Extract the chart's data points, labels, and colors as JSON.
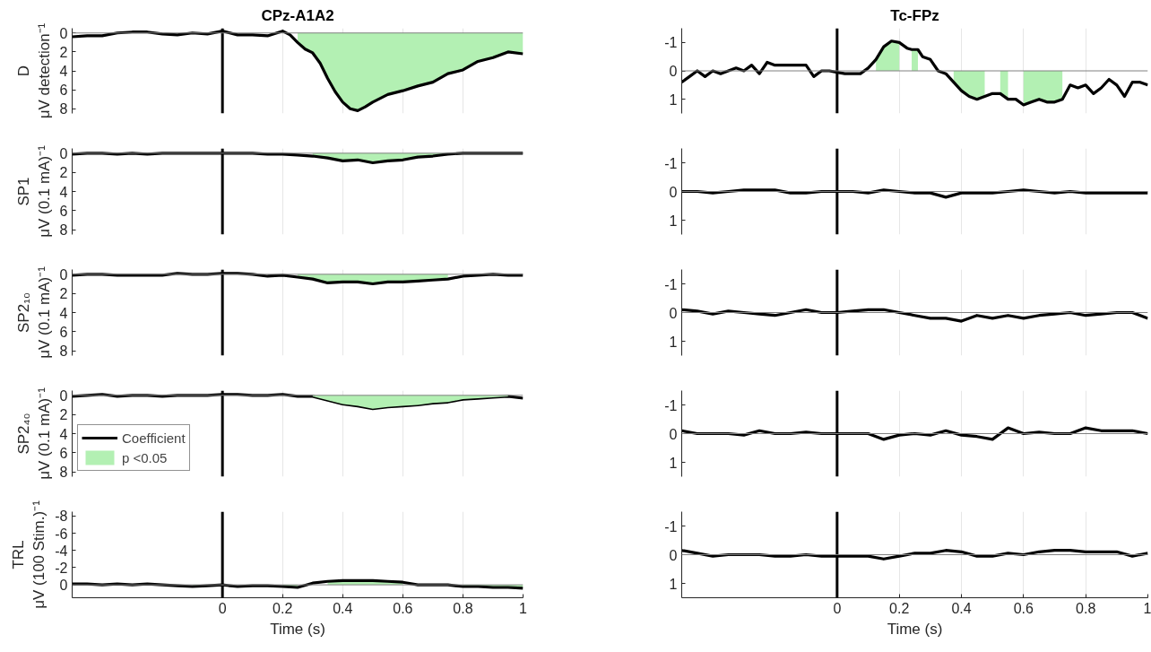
{
  "chart_data": [
    {
      "type": "line",
      "title": "CPz-A1A2",
      "ylabel": "D\nμV detection⁻¹",
      "tick_labels": "y",
      "grid": "x",
      "x": [
        -0.5,
        -0.45,
        -0.4,
        -0.35,
        -0.3,
        -0.25,
        -0.2,
        -0.15,
        -0.1,
        -0.05,
        0,
        0.05,
        0.1,
        0.15,
        0.2,
        0.225,
        0.25,
        0.275,
        0.3,
        0.325,
        0.35,
        0.375,
        0.4,
        0.425,
        0.45,
        0.475,
        0.5,
        0.525,
        0.55,
        0.6,
        0.65,
        0.7,
        0.75,
        0.8,
        0.85,
        0.9,
        0.95,
        1
      ],
      "xlim": [
        -0.5,
        1
      ],
      "xticks": [
        0,
        0.2,
        0.4,
        0.6,
        0.8,
        1
      ],
      "ylim": [
        8.5,
        -0.5
      ],
      "yticks": [
        0,
        2,
        4,
        6,
        8
      ],
      "ref_lines": [
        {
          "axis": "x",
          "value": 0,
          "color": "#000000"
        },
        {
          "axis": "y",
          "value": 0,
          "color": "#808080"
        }
      ],
      "series": [
        {
          "type": "area",
          "color": "#b3f0b3",
          "values": [
            null,
            null,
            null,
            null,
            null,
            null,
            null,
            null,
            null,
            null,
            null,
            null,
            null,
            null,
            null,
            null,
            1.0,
            1.7,
            2.1,
            3.2,
            4.8,
            6.2,
            7.3,
            8.0,
            8.2,
            7.8,
            7.3,
            6.9,
            6.5,
            6.1,
            5.6,
            5.2,
            4.3,
            3.9,
            3.0,
            2.6,
            2.0,
            2.2
          ]
        },
        {
          "type": "line",
          "color": "#000000",
          "values": [
            0.4,
            0.3,
            0.3,
            0,
            -0.1,
            -0.1,
            0.1,
            0.2,
            0,
            0.1,
            -0.2,
            0.2,
            0.2,
            0.3,
            -0.2,
            0.2,
            1.0,
            1.7,
            2.1,
            3.2,
            4.8,
            6.2,
            7.3,
            8.0,
            8.2,
            7.8,
            7.3,
            6.9,
            6.5,
            6.1,
            5.6,
            5.2,
            4.3,
            3.9,
            3.0,
            2.6,
            2.0,
            2.2
          ]
        }
      ]
    },
    {
      "type": "line",
      "title": "Tc-FPz",
      "tick_labels": "y",
      "grid": "x",
      "x": [
        -0.5,
        -0.475,
        -0.45,
        -0.425,
        -0.4,
        -0.375,
        -0.35,
        -0.325,
        -0.3,
        -0.275,
        -0.25,
        -0.225,
        -0.2,
        -0.175,
        -0.15,
        -0.125,
        -0.1,
        -0.075,
        -0.05,
        -0.025,
        0,
        0.025,
        0.05,
        0.075,
        0.1,
        0.125,
        0.15,
        0.175,
        0.2,
        0.225,
        0.24,
        0.26,
        0.275,
        0.3,
        0.325,
        0.35,
        0.375,
        0.4,
        0.425,
        0.45,
        0.475,
        0.5,
        0.525,
        0.55,
        0.575,
        0.6,
        0.625,
        0.65,
        0.675,
        0.7,
        0.725,
        0.75,
        0.775,
        0.8,
        0.825,
        0.85,
        0.875,
        0.9,
        0.925,
        0.95,
        0.975,
        1
      ],
      "xlim": [
        -0.5,
        1
      ],
      "xticks": [
        0,
        0.2,
        0.4,
        0.6,
        0.8,
        1
      ],
      "ylim": [
        1.5,
        -1.5
      ],
      "yticks": [
        -1,
        0,
        1
      ],
      "ref_lines": [
        {
          "axis": "x",
          "value": 0,
          "color": "#000000"
        },
        {
          "axis": "y",
          "value": 0,
          "color": "#808080"
        }
      ],
      "series": [
        {
          "type": "area",
          "color": "#b3f0b3",
          "values": [
            null,
            null,
            null,
            null,
            null,
            null,
            null,
            null,
            null,
            null,
            null,
            null,
            null,
            null,
            null,
            null,
            null,
            null,
            null,
            null,
            null,
            null,
            null,
            null,
            null,
            -0.4,
            -0.85,
            -1.05,
            -1.0,
            null,
            -0.75,
            -0.75,
            null,
            null,
            null,
            null,
            0.4,
            0.7,
            0.9,
            1.0,
            0.9,
            null,
            0.8,
            1.0,
            null,
            1.2,
            1.1,
            1.0,
            1.1,
            1.1,
            1.0,
            null,
            null,
            null,
            null,
            null,
            null,
            null,
            null,
            null,
            null,
            null
          ]
        },
        {
          "type": "line",
          "color": "#000000",
          "values": [
            0.4,
            0.2,
            0,
            0.2,
            0,
            0.1,
            0,
            -0.1,
            0,
            -0.2,
            0.1,
            -0.3,
            -0.2,
            -0.2,
            -0.2,
            -0.2,
            -0.2,
            0.2,
            0,
            0,
            0.05,
            0.1,
            0.1,
            0.1,
            -0.1,
            -0.4,
            -0.85,
            -1.05,
            -1.0,
            -0.8,
            -0.75,
            -0.75,
            -0.5,
            -0.4,
            0,
            0.1,
            0.4,
            0.7,
            0.9,
            1.0,
            0.9,
            0.8,
            0.8,
            1.0,
            1.0,
            1.2,
            1.1,
            1.0,
            1.1,
            1.1,
            1.0,
            0.5,
            0.6,
            0.5,
            0.8,
            0.6,
            0.3,
            0.5,
            0.9,
            0.4,
            0.4,
            0.5
          ]
        }
      ]
    },
    {
      "type": "line",
      "ylabel": "SP1\nμV (0.1 mA)⁻¹",
      "tick_labels": "y",
      "grid": "x",
      "x": [
        -0.5,
        -0.45,
        -0.4,
        -0.35,
        -0.3,
        -0.25,
        -0.2,
        -0.15,
        -0.1,
        -0.05,
        0,
        0.05,
        0.1,
        0.15,
        0.2,
        0.25,
        0.3,
        0.35,
        0.4,
        0.45,
        0.5,
        0.55,
        0.6,
        0.65,
        0.7,
        0.75,
        0.8,
        0.85,
        0.9,
        0.95,
        1
      ],
      "xlim": [
        -0.5,
        1
      ],
      "xticks": [
        0,
        0.2,
        0.4,
        0.6,
        0.8,
        1
      ],
      "ylim": [
        8.5,
        -0.5
      ],
      "yticks": [
        0,
        2,
        4,
        6,
        8
      ],
      "ref_lines": [
        {
          "axis": "x",
          "value": 0,
          "color": "#000000"
        },
        {
          "axis": "y",
          "value": 0,
          "color": "#808080"
        }
      ],
      "series": [
        {
          "type": "area",
          "color": "#b3f0b3",
          "values": [
            null,
            null,
            null,
            null,
            null,
            null,
            null,
            null,
            null,
            null,
            null,
            null,
            null,
            null,
            null,
            null,
            0.3,
            0.5,
            0.8,
            0.7,
            1.0,
            0.8,
            0.7,
            0.4,
            0.3,
            0.1,
            null,
            null,
            null,
            null,
            null
          ]
        },
        {
          "type": "line",
          "color": "#000000",
          "values": [
            0.1,
            0,
            0,
            0.1,
            0,
            0.1,
            0,
            0,
            0,
            0,
            0,
            0,
            0,
            0.1,
            0.1,
            0.2,
            0.3,
            0.5,
            0.8,
            0.7,
            1.0,
            0.8,
            0.7,
            0.4,
            0.3,
            0.1,
            0,
            0,
            0,
            0,
            0
          ]
        }
      ]
    },
    {
      "type": "line",
      "tick_labels": "y",
      "grid": "x",
      "x": [
        -0.5,
        -0.45,
        -0.4,
        -0.35,
        -0.3,
        -0.25,
        -0.2,
        -0.15,
        -0.1,
        -0.05,
        0,
        0.05,
        0.1,
        0.15,
        0.2,
        0.25,
        0.3,
        0.35,
        0.4,
        0.45,
        0.5,
        0.55,
        0.6,
        0.65,
        0.7,
        0.75,
        0.8,
        0.85,
        0.9,
        0.95,
        1
      ],
      "xlim": [
        -0.5,
        1
      ],
      "xticks": [
        0,
        0.2,
        0.4,
        0.6,
        0.8,
        1
      ],
      "ylim": [
        1.5,
        -1.5
      ],
      "yticks": [
        -1,
        0,
        1
      ],
      "ref_lines": [
        {
          "axis": "x",
          "value": 0,
          "color": "#000000"
        },
        {
          "axis": "y",
          "value": 0,
          "color": "#808080"
        }
      ],
      "series": [
        {
          "type": "line",
          "color": "#000000",
          "values": [
            0,
            0,
            0.05,
            0,
            -0.05,
            -0.05,
            -0.05,
            0.05,
            0.05,
            0,
            0,
            0,
            0.05,
            -0.05,
            0,
            0.05,
            0.05,
            0.2,
            0.05,
            0.05,
            0.05,
            0,
            -0.05,
            0,
            0.05,
            0,
            0.05,
            0.05,
            0.05,
            0.05,
            0.05
          ]
        }
      ]
    },
    {
      "type": "line",
      "ylabel": "SP2₁₀\nμV (0.1 mA)⁻¹",
      "tick_labels": "y",
      "grid": "x",
      "x": [
        -0.5,
        -0.45,
        -0.4,
        -0.35,
        -0.3,
        -0.25,
        -0.2,
        -0.15,
        -0.1,
        -0.05,
        0,
        0.05,
        0.1,
        0.15,
        0.2,
        0.25,
        0.3,
        0.35,
        0.4,
        0.45,
        0.5,
        0.55,
        0.6,
        0.65,
        0.7,
        0.75,
        0.8,
        0.85,
        0.9,
        0.95,
        1
      ],
      "xlim": [
        -0.5,
        1
      ],
      "xticks": [
        0,
        0.2,
        0.4,
        0.6,
        0.8,
        1
      ],
      "ylim": [
        8.5,
        -0.5
      ],
      "yticks": [
        0,
        2,
        4,
        6,
        8
      ],
      "ref_lines": [
        {
          "axis": "x",
          "value": 0,
          "color": "#000000"
        },
        {
          "axis": "y",
          "value": 0,
          "color": "#808080"
        }
      ],
      "series": [
        {
          "type": "area",
          "color": "#b3f0b3",
          "values": [
            null,
            null,
            null,
            null,
            null,
            null,
            null,
            null,
            null,
            null,
            null,
            null,
            null,
            null,
            null,
            0.3,
            0.5,
            0.9,
            0.8,
            0.8,
            1.0,
            0.8,
            0.8,
            0.7,
            0.6,
            0.5,
            null,
            null,
            null,
            null,
            null
          ]
        },
        {
          "type": "line",
          "color": "#000000",
          "values": [
            0.1,
            0,
            0,
            0.1,
            0.1,
            0.1,
            0.1,
            -0.1,
            0,
            0,
            -0.1,
            -0.1,
            0,
            0.2,
            0.1,
            0.3,
            0.5,
            0.9,
            0.8,
            0.8,
            1.0,
            0.8,
            0.8,
            0.7,
            0.6,
            0.5,
            0.2,
            0.1,
            0,
            0.1,
            0.1
          ]
        }
      ]
    },
    {
      "type": "line",
      "tick_labels": "y",
      "grid": "x",
      "x": [
        -0.5,
        -0.45,
        -0.4,
        -0.35,
        -0.3,
        -0.25,
        -0.2,
        -0.15,
        -0.1,
        -0.05,
        0,
        0.05,
        0.1,
        0.15,
        0.2,
        0.25,
        0.3,
        0.35,
        0.4,
        0.45,
        0.5,
        0.55,
        0.6,
        0.65,
        0.7,
        0.75,
        0.8,
        0.85,
        0.9,
        0.95,
        1
      ],
      "xlim": [
        -0.5,
        1
      ],
      "xticks": [
        0,
        0.2,
        0.4,
        0.6,
        0.8,
        1
      ],
      "ylim": [
        1.5,
        -1.5
      ],
      "yticks": [
        -1,
        0,
        1
      ],
      "ref_lines": [
        {
          "axis": "x",
          "value": 0,
          "color": "#000000"
        },
        {
          "axis": "y",
          "value": 0,
          "color": "#808080"
        }
      ],
      "series": [
        {
          "type": "line",
          "color": "#000000",
          "values": [
            -0.1,
            -0.05,
            0.05,
            -0.05,
            0,
            0.05,
            0.1,
            0,
            -0.1,
            0,
            0,
            -0.05,
            -0.1,
            -0.1,
            0,
            0.1,
            0.2,
            0.2,
            0.3,
            0.1,
            0.2,
            0.1,
            0.2,
            0.1,
            0.05,
            0,
            0.1,
            0.05,
            0,
            0,
            0.2
          ]
        }
      ]
    },
    {
      "type": "line",
      "ylabel": "SP2₄₀\nμV (0.1 mA)⁻¹",
      "tick_labels": "y",
      "grid": "x",
      "legend": "bottom left",
      "x": [
        -0.5,
        -0.45,
        -0.4,
        -0.35,
        -0.3,
        -0.25,
        -0.2,
        -0.15,
        -0.1,
        -0.05,
        0,
        0.05,
        0.1,
        0.15,
        0.2,
        0.25,
        0.3,
        0.35,
        0.4,
        0.45,
        0.5,
        0.55,
        0.6,
        0.65,
        0.7,
        0.75,
        0.8,
        0.85,
        0.9,
        0.95,
        1
      ],
      "xlim": [
        -0.5,
        1
      ],
      "xticks": [
        0,
        0.2,
        0.4,
        0.6,
        0.8,
        1
      ],
      "ylim": [
        8.5,
        -0.5
      ],
      "yticks": [
        0,
        2,
        4,
        6,
        8
      ],
      "ref_lines": [
        {
          "axis": "x",
          "value": 0,
          "color": "#000000"
        },
        {
          "axis": "y",
          "value": 0,
          "color": "#808080"
        }
      ],
      "series": [
        {
          "type": "line",
          "name": "Coefficient",
          "color": "#000000",
          "values": [
            0.1,
            0,
            -0.1,
            0.1,
            0,
            0,
            0.1,
            0,
            0,
            0,
            -0.1,
            -0.1,
            0,
            0,
            -0.1,
            0.1,
            0.1,
            0.5,
            0.9,
            1.1,
            1.4,
            1.2,
            1.1,
            1.0,
            0.8,
            0.7,
            0.4,
            0.3,
            0.2,
            0.1,
            0.3
          ]
        },
        {
          "type": "area",
          "name": "p <0.05",
          "color": "#b3f0b3",
          "values": [
            null,
            null,
            null,
            null,
            null,
            null,
            null,
            null,
            null,
            null,
            null,
            null,
            null,
            null,
            null,
            null,
            0.1,
            0.5,
            0.9,
            1.1,
            1.4,
            1.2,
            1.1,
            1.0,
            0.8,
            0.7,
            0.4,
            0.3,
            0.2,
            0.1,
            null
          ]
        }
      ]
    },
    {
      "type": "line",
      "tick_labels": "y",
      "grid": "x",
      "x": [
        -0.5,
        -0.45,
        -0.4,
        -0.35,
        -0.3,
        -0.25,
        -0.2,
        -0.15,
        -0.1,
        -0.05,
        0,
        0.05,
        0.1,
        0.15,
        0.2,
        0.25,
        0.3,
        0.35,
        0.4,
        0.45,
        0.5,
        0.55,
        0.6,
        0.65,
        0.7,
        0.75,
        0.8,
        0.85,
        0.9,
        0.95,
        1
      ],
      "xlim": [
        -0.5,
        1
      ],
      "xticks": [
        0,
        0.2,
        0.4,
        0.6,
        0.8,
        1
      ],
      "ylim": [
        1.5,
        -1.5
      ],
      "yticks": [
        -1,
        0,
        1
      ],
      "ref_lines": [
        {
          "axis": "x",
          "value": 0,
          "color": "#000000"
        },
        {
          "axis": "y",
          "value": 0,
          "color": "#808080"
        }
      ],
      "series": [
        {
          "type": "line",
          "color": "#000000",
          "values": [
            -0.1,
            0,
            0,
            0,
            0.05,
            -0.1,
            0,
            0,
            -0.05,
            0,
            0,
            0,
            0,
            0.2,
            0.05,
            0,
            0.05,
            -0.1,
            0.05,
            0.1,
            0.2,
            -0.2,
            0,
            -0.05,
            0,
            0,
            -0.2,
            -0.1,
            -0.1,
            -0.1,
            0
          ]
        }
      ]
    },
    {
      "type": "line",
      "ylabel": "TRL\nμV (100 Stim.)⁻¹",
      "xlabel": "Time (s)",
      "grid": "x",
      "x": [
        -0.5,
        -0.45,
        -0.4,
        -0.35,
        -0.3,
        -0.25,
        -0.2,
        -0.15,
        -0.1,
        -0.05,
        0,
        0.05,
        0.1,
        0.15,
        0.2,
        0.25,
        0.3,
        0.35,
        0.4,
        0.45,
        0.5,
        0.55,
        0.6,
        0.65,
        0.7,
        0.75,
        0.8,
        0.85,
        0.9,
        0.95,
        1
      ],
      "xlim": [
        -0.5,
        1
      ],
      "xticks": [
        0,
        0.2,
        0.4,
        0.6,
        0.8,
        1
      ],
      "ylim": [
        1.5,
        -8.5
      ],
      "yticks": [
        -8,
        -6,
        -4,
        -2,
        0
      ],
      "ref_lines": [
        {
          "axis": "x",
          "value": 0,
          "color": "#000000"
        },
        {
          "axis": "y",
          "value": 0,
          "color": "#808080"
        }
      ],
      "series": [
        {
          "type": "area",
          "color": "#b3f0b3",
          "values": [
            null,
            null,
            null,
            null,
            null,
            null,
            null,
            null,
            0.2,
            0.1,
            null,
            null,
            null,
            null,
            0.2,
            0.3,
            null,
            -0.4,
            -0.5,
            -0.5,
            -0.5,
            -0.4,
            -0.3,
            null,
            null,
            null,
            0.2,
            0.2,
            0.3,
            0.3,
            0.4
          ]
        },
        {
          "type": "line",
          "color": "#000000",
          "values": [
            -0.1,
            -0.1,
            0,
            -0.1,
            0,
            -0.1,
            0,
            0.1,
            0.2,
            0.1,
            0,
            0.2,
            0.1,
            0.1,
            0.2,
            0.3,
            -0.2,
            -0.4,
            -0.5,
            -0.5,
            -0.5,
            -0.4,
            -0.3,
            0,
            0,
            0,
            0.2,
            0.2,
            0.3,
            0.3,
            0.4
          ]
        }
      ]
    },
    {
      "type": "line",
      "xlabel": "Time (s)",
      "grid": "x",
      "x": [
        -0.5,
        -0.45,
        -0.4,
        -0.35,
        -0.3,
        -0.25,
        -0.2,
        -0.15,
        -0.1,
        -0.05,
        0,
        0.05,
        0.1,
        0.15,
        0.2,
        0.25,
        0.3,
        0.35,
        0.4,
        0.45,
        0.5,
        0.55,
        0.6,
        0.65,
        0.7,
        0.75,
        0.8,
        0.85,
        0.9,
        0.95,
        1
      ],
      "xlim": [
        -0.5,
        1
      ],
      "xticks": [
        0,
        0.2,
        0.4,
        0.6,
        0.8,
        1
      ],
      "ylim": [
        1.5,
        -1.5
      ],
      "yticks": [
        -1,
        0,
        1
      ],
      "ref_lines": [
        {
          "axis": "x",
          "value": 0,
          "color": "#000000"
        },
        {
          "axis": "y",
          "value": 0,
          "color": "#808080"
        }
      ],
      "series": [
        {
          "type": "line",
          "color": "#000000",
          "values": [
            -0.15,
            -0.05,
            0.05,
            0,
            0,
            0,
            0.05,
            0.05,
            0,
            0.05,
            0.05,
            0.05,
            0.05,
            0.15,
            0.05,
            -0.05,
            -0.05,
            -0.15,
            -0.1,
            0.05,
            0.05,
            -0.05,
            0,
            -0.1,
            -0.15,
            -0.15,
            -0.1,
            -0.1,
            -0.1,
            0.05,
            -0.05
          ]
        }
      ]
    }
  ]
}
